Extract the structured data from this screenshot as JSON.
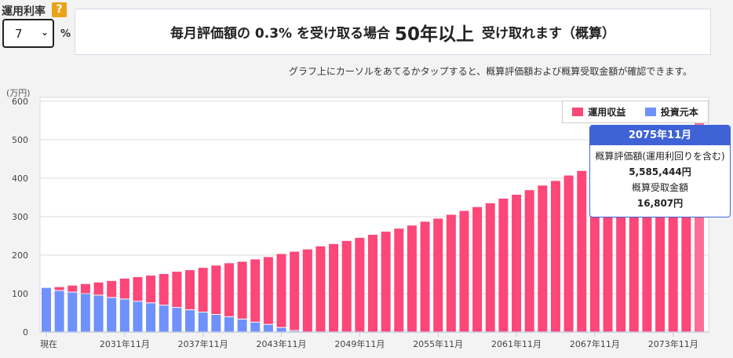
{
  "controls": {
    "rate_label": "運用利率",
    "help_icon": "?",
    "rate_value": "7",
    "rate_unit": "%"
  },
  "banner": {
    "prefix": "毎月評価額の 0.3% を受け取る場合",
    "years": "50年以上",
    "suffix": "受け取れます（概算）"
  },
  "note": "グラフ上にカーソルをあてるかタップすると、概算評価額および概算受取金額が確認できます。",
  "tooltip": {
    "title": "2075年11月",
    "label1": "概算評価額(運用利回りを含む)",
    "value1": "5,585,444円",
    "label2": "概算受取金額",
    "value2": "16,807円"
  },
  "chart_data": {
    "type": "bar",
    "stacked": true,
    "ylabel": "(万円)",
    "ylim": [
      0,
      600
    ],
    "yticks": [
      "0",
      "100",
      "200",
      "300",
      "400",
      "500",
      "600"
    ],
    "xtick_labels": [
      "現在",
      "2031年11月",
      "2037年11月",
      "2043年11月",
      "2049年11月",
      "2055年11月",
      "2061年11月",
      "2067年11月",
      "2073年11月"
    ],
    "xtick_every": 6,
    "legend": {
      "position": "top-right",
      "entries": [
        "運用収益",
        "投資元本"
      ]
    },
    "colors": {
      "運用収益": "#fc4778",
      "投資元本": "#6e91fb",
      "highlight": "#fd6e96"
    },
    "highlight_index": 50,
    "totals": [
      115,
      117,
      121,
      125,
      129,
      133,
      139,
      143,
      147,
      151,
      157,
      161,
      167,
      173,
      179,
      183,
      189,
      195,
      203,
      209,
      215,
      223,
      229,
      237,
      245,
      253,
      261,
      269,
      277,
      287,
      295,
      305,
      315,
      325,
      335,
      347,
      357,
      369,
      381,
      393,
      407,
      419,
      432,
      446,
      460,
      474,
      489,
      505,
      521,
      538,
      558.5
    ],
    "principal": [
      115,
      109,
      105,
      101,
      97,
      91,
      87,
      81,
      77,
      71,
      65,
      59,
      53,
      47,
      41,
      35,
      27,
      21,
      13,
      5,
      0,
      0,
      0,
      0,
      0,
      0,
      0,
      0,
      0,
      0,
      0,
      0,
      0,
      0,
      0,
      0,
      0,
      0,
      0,
      0,
      0,
      0,
      0,
      0,
      0,
      0,
      0,
      0,
      0,
      0,
      0
    ]
  }
}
